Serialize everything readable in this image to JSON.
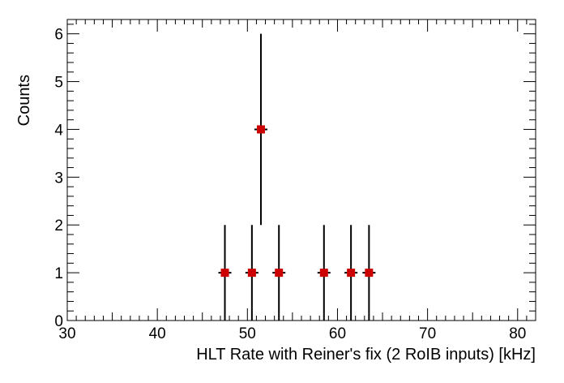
{
  "chart_data": {
    "type": "scatter",
    "title": "",
    "xlabel": "HLT Rate with Reiner's fix (2 RoIB inputs) [kHz]",
    "ylabel": "Counts",
    "xlim": [
      30,
      82
    ],
    "ylim": [
      0,
      6.3
    ],
    "x_tick_labels": [
      "30",
      "40",
      "50",
      "60",
      "70",
      "80"
    ],
    "y_tick_labels": [
      "0",
      "1",
      "2",
      "3",
      "4",
      "5",
      "6"
    ],
    "marker_color": "#cc0000",
    "errorbar_color": "#000000",
    "grid": false,
    "legend": "none",
    "series": [
      {
        "points": [
          {
            "x": 47.5,
            "y": 1,
            "yerr": 1
          },
          {
            "x": 50.5,
            "y": 1,
            "yerr": 1
          },
          {
            "x": 51.5,
            "y": 4,
            "yerr": 2
          },
          {
            "x": 53.5,
            "y": 1,
            "yerr": 1
          },
          {
            "x": 58.5,
            "y": 1,
            "yerr": 1
          },
          {
            "x": 61.5,
            "y": 1,
            "yerr": 1
          },
          {
            "x": 63.5,
            "y": 1,
            "yerr": 1
          }
        ]
      }
    ]
  }
}
